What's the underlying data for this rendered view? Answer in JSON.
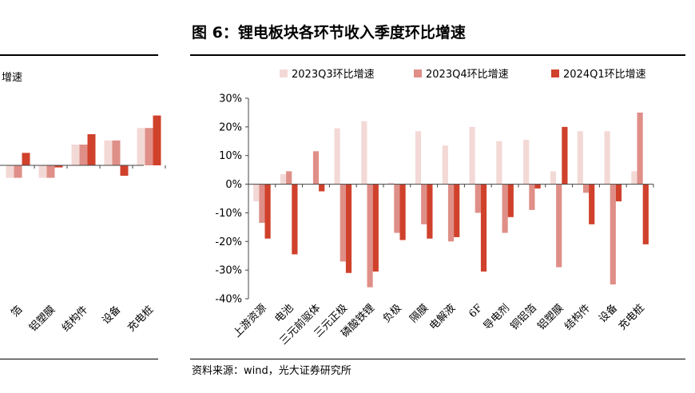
{
  "left_panel": {
    "legend_fragment": "增速",
    "categories_visible": [
      "箔",
      "铝塑膜",
      "结构件",
      "设备",
      "充电桩"
    ],
    "series_colors": [
      "#f3d9d6",
      "#df8f88",
      "#d0412c"
    ]
  },
  "figure": {
    "title": "图 6：锂电板块各环节收入季度环比增速",
    "source": "资料来源：wind，光大证券研究所"
  },
  "chart_data": [
    {
      "type": "bar",
      "title": "",
      "xlabel": "",
      "ylabel": "",
      "categories": [
        "箔",
        "铝塑膜",
        "结构件",
        "设备",
        "充电桩"
      ],
      "series": [
        {
          "values": [
            -3,
            -3,
            5,
            6,
            9
          ],
          "color": "#f3d9d6"
        },
        {
          "values": [
            -3,
            -3,
            5,
            6,
            9
          ],
          "color": "#df8f88"
        },
        {
          "values": [
            3,
            -0.5,
            7.5,
            -2.5,
            12
          ],
          "color": "#d0412c"
        }
      ]
    },
    {
      "type": "bar",
      "title": "图 6：锂电板块各环节收入季度环比增速",
      "xlabel": "",
      "ylabel": "",
      "ylim": [
        -40,
        30
      ],
      "yticks": [
        30,
        20,
        10,
        0,
        -10,
        -20,
        -30,
        -40
      ],
      "ytick_labels": [
        "30%",
        "20%",
        "10%",
        "0%",
        "-10%",
        "-20%",
        "-30%",
        "-40%"
      ],
      "grid": false,
      "legend_position": "top",
      "categories": [
        "上游资源",
        "电池",
        "三元前驱体",
        "三元正极",
        "磷酸铁锂",
        "负极",
        "隔膜",
        "电解液",
        "6F",
        "导电剂",
        "铜铝箔",
        "铝塑膜",
        "结构件",
        "设备",
        "充电桩"
      ],
      "series": [
        {
          "name": "2023Q3环比增速",
          "color": "#f3d9d6",
          "values": [
            -6,
            3.5,
            0,
            19.5,
            22,
            0.5,
            18.5,
            13.5,
            20,
            15,
            15.5,
            4.5,
            18.5,
            18.5,
            4.5
          ]
        },
        {
          "name": "2023Q4环比增速",
          "color": "#df8f88",
          "values": [
            -13.5,
            4.5,
            11.5,
            -27,
            -36,
            -17,
            -14,
            -20,
            -10,
            -17,
            -9,
            -29,
            -3,
            -35,
            25
          ]
        },
        {
          "name": "2024Q1环比增速",
          "color": "#d0412c",
          "values": [
            -19,
            -24.5,
            -2.5,
            -31,
            -30.5,
            -19.5,
            -19,
            -18.5,
            -30.5,
            -11.5,
            -1.5,
            20,
            -14,
            -6,
            -21
          ]
        }
      ]
    }
  ]
}
